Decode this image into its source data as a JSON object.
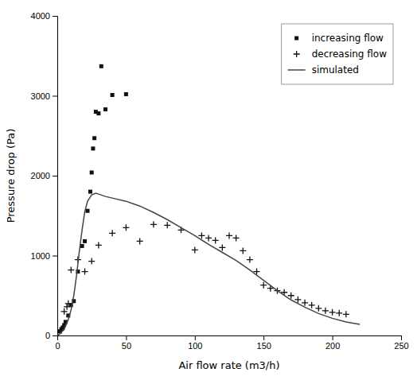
{
  "chart_data": {
    "type": "scatter",
    "xlabel": "Air flow rate (m3/h)",
    "ylabel": "Pressure drop (Pa)",
    "xlim": [
      0,
      250
    ],
    "ylim": [
      0,
      4000
    ],
    "xticks": [
      0,
      50,
      100,
      150,
      200,
      250
    ],
    "yticks": [
      0,
      1000,
      2000,
      3000,
      4000
    ],
    "legend": "upper right",
    "series": [
      {
        "name": "increasing flow",
        "type": "scatter",
        "marker": "square",
        "color": "#111111",
        "x": [
          2,
          3,
          4,
          5,
          6,
          8,
          10,
          12,
          15,
          18,
          20,
          22,
          24,
          25,
          26,
          27,
          28,
          30,
          32,
          35,
          40,
          50
        ],
        "values": [
          50,
          80,
          100,
          130,
          170,
          250,
          380,
          430,
          800,
          1120,
          1180,
          1560,
          1800,
          2040,
          2340,
          2470,
          2800,
          2780,
          3370,
          2830,
          3010,
          3020
        ]
      },
      {
        "name": "decreasing flow",
        "type": "scatter",
        "marker": "plus",
        "color": "#111111",
        "x": [
          3,
          5,
          7,
          8,
          10,
          15,
          20,
          25,
          30,
          40,
          50,
          60,
          70,
          80,
          90,
          100,
          105,
          110,
          115,
          120,
          125,
          130,
          135,
          140,
          145,
          150,
          155,
          160,
          165,
          170,
          175,
          180,
          185,
          190,
          195,
          200,
          205,
          210
        ],
        "values": [
          70,
          300,
          360,
          400,
          820,
          950,
          800,
          930,
          1130,
          1280,
          1350,
          1180,
          1390,
          1380,
          1320,
          1070,
          1250,
          1220,
          1190,
          1100,
          1250,
          1220,
          1060,
          950,
          800,
          630,
          590,
          560,
          540,
          500,
          450,
          410,
          380,
          340,
          310,
          290,
          280,
          265
        ]
      },
      {
        "name": "simulated",
        "type": "line",
        "color": "#444444",
        "x": [
          0,
          2,
          5,
          8,
          10,
          12,
          14,
          16,
          18,
          20,
          22,
          25,
          28,
          30,
          35,
          40,
          50,
          60,
          70,
          80,
          90,
          100,
          110,
          120,
          130,
          140,
          150,
          160,
          170,
          180,
          190,
          200,
          210,
          220
        ],
        "values": [
          0,
          20,
          80,
          200,
          320,
          500,
          750,
          1050,
          1320,
          1550,
          1680,
          1760,
          1780,
          1770,
          1740,
          1720,
          1680,
          1620,
          1540,
          1450,
          1350,
          1250,
          1140,
          1040,
          940,
          820,
          690,
          560,
          445,
          355,
          275,
          215,
          170,
          140
        ]
      }
    ]
  }
}
